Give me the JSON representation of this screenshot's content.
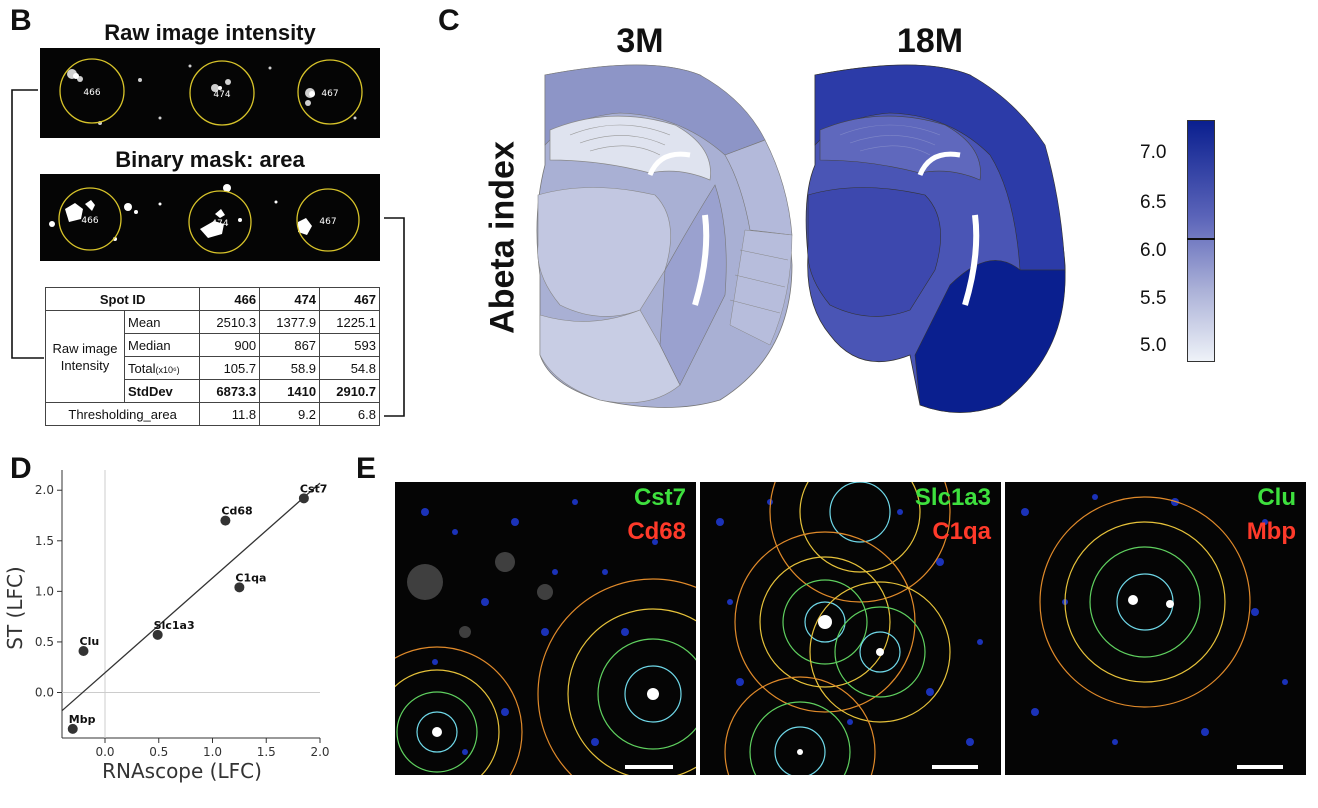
{
  "panels": {
    "B": {
      "letter": "B",
      "raw_title": "Raw image intensity",
      "mask_title": "Binary mask: area",
      "spot_labels": [
        "466",
        "474",
        "467"
      ],
      "table": {
        "header": {
          "label": "Spot ID",
          "values": [
            "466",
            "474",
            "467"
          ]
        },
        "group_label_line1": "Raw image",
        "group_label_line2": "Intensity",
        "rows": [
          {
            "label": "Mean",
            "values": [
              "2510.3",
              "1377.9",
              "1225.1"
            ]
          },
          {
            "label": "Median",
            "values": [
              "900",
              "867",
              "593"
            ]
          },
          {
            "label": "Total",
            "suffix": "(x10⁶)",
            "values": [
              "105.7",
              "58.9",
              "54.8"
            ]
          },
          {
            "label": "StdDev",
            "values": [
              "6873.3",
              "1410",
              "2910.7"
            ]
          }
        ],
        "threshold_row": {
          "label": "Thresholding_area",
          "values": [
            "11.8",
            "9.2",
            "6.8"
          ]
        }
      }
    },
    "C": {
      "letter": "C",
      "ylabel": "Abeta index",
      "titles": [
        "3M",
        "18M"
      ],
      "colorbar_ticks": [
        "7.0",
        "6.5",
        "6.0",
        "5.5",
        "5.0"
      ],
      "colors": {
        "low": "#eef2f8",
        "mid": "#8f95c8",
        "high": "#0a1f8f"
      }
    },
    "D": {
      "letter": "D"
    },
    "E": {
      "letter": "E",
      "images": [
        {
          "green": "Cst7",
          "red": "Cd68"
        },
        {
          "green": "Slc1a3",
          "red": "C1qa"
        },
        {
          "green": "Clu",
          "red": "Mbp"
        }
      ],
      "colors": {
        "green": "#3ee03e",
        "red": "#ff3a2a"
      }
    }
  },
  "chart_data": {
    "type": "scatter",
    "xlabel": "RNAscope (LFC)",
    "ylabel": "ST (LFC)",
    "xlim": [
      -0.4,
      2.0
    ],
    "ylim": [
      -0.45,
      2.2
    ],
    "x_ticks": [
      "0.0",
      "0.5",
      "1.0",
      "1.5",
      "2.0"
    ],
    "y_ticks": [
      "0.0",
      "0.5",
      "1.0",
      "1.5",
      "2.0"
    ],
    "grid": false,
    "points": [
      {
        "label": "Cst7",
        "x": 1.85,
        "y": 1.92
      },
      {
        "label": "Cd68",
        "x": 1.12,
        "y": 1.7
      },
      {
        "label": "C1qa",
        "x": 1.25,
        "y": 1.04
      },
      {
        "label": "Slc1a3",
        "x": 0.49,
        "y": 0.57
      },
      {
        "label": "Clu",
        "x": -0.2,
        "y": 0.41
      },
      {
        "label": "Mbp",
        "x": -0.3,
        "y": -0.36
      }
    ],
    "fit_line": {
      "x": [
        -0.4,
        2.0
      ],
      "y": [
        -0.18,
        2.07
      ]
    }
  }
}
